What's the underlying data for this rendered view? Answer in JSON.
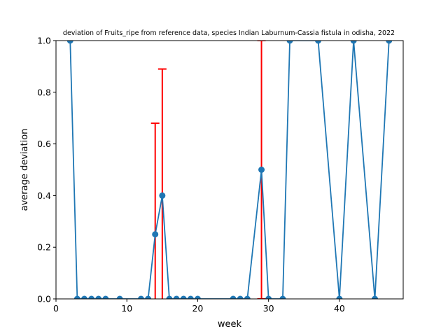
{
  "chart_data": {
    "type": "line",
    "title": "deviation of Fruits_ripe from reference data, species Indian Laburnum-Cassia fistula in odisha, 2022",
    "xlabel": "week",
    "ylabel": "average deviation",
    "xlim": [
      0,
      49
    ],
    "ylim": [
      0,
      1
    ],
    "xticks": [
      0,
      10,
      20,
      30,
      40
    ],
    "yticks": [
      0.0,
      0.2,
      0.4,
      0.6,
      0.8,
      1.0
    ],
    "xtick_labels": [
      "0",
      "10",
      "20",
      "30",
      "40"
    ],
    "ytick_labels": [
      "0.0",
      "0.2",
      "0.4",
      "0.6",
      "0.8",
      "1.0"
    ],
    "grid": false,
    "line_color": "#1f77b4",
    "errorbar_color": "#ff0000",
    "series": [
      {
        "x": [
          2,
          3,
          4,
          5,
          6,
          7,
          9,
          12,
          13,
          14,
          15,
          16,
          17,
          18,
          19,
          20,
          25,
          26,
          27,
          29,
          30,
          32,
          33,
          37,
          40,
          42,
          45,
          47
        ],
        "y": [
          1,
          0,
          0,
          0,
          0,
          0,
          0,
          0,
          0,
          0.25,
          0.4,
          0,
          0,
          0,
          0,
          0,
          0,
          0,
          0,
          0.5,
          0,
          0,
          1,
          1,
          0,
          1,
          0,
          1
        ],
        "yerr": [
          0,
          0,
          0,
          0,
          0,
          0,
          0,
          0,
          0,
          0.43,
          0.49,
          0,
          0,
          0,
          0,
          0,
          0,
          0,
          0,
          0.5,
          0,
          0,
          0,
          0,
          0,
          0,
          0,
          0
        ]
      }
    ]
  }
}
